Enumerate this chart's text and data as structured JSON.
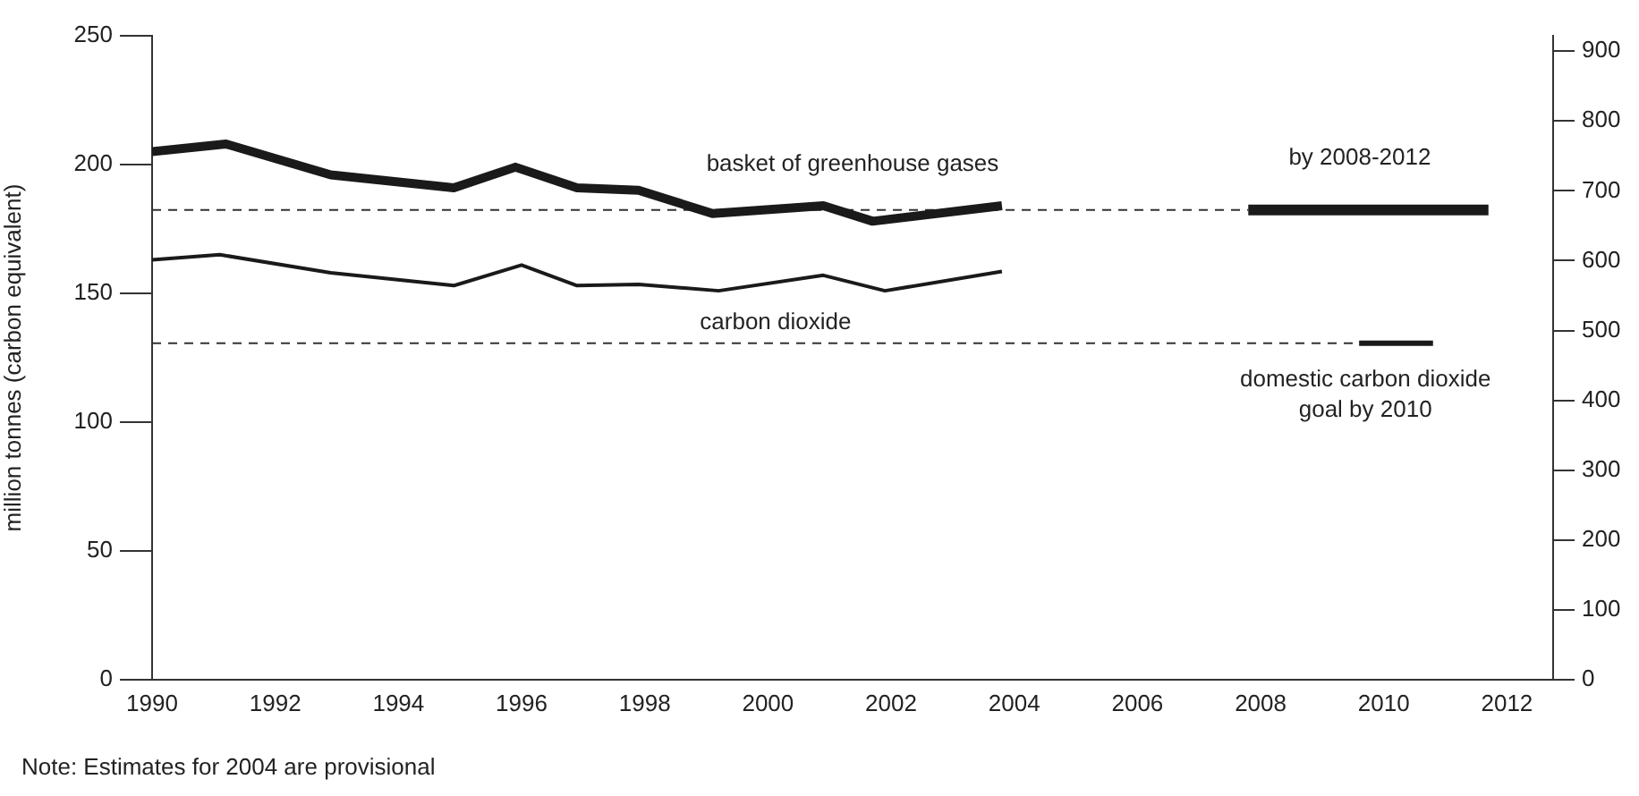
{
  "chart_data": {
    "type": "line",
    "xlim": [
      1990,
      2012.75
    ],
    "xticks": [
      1990,
      1992,
      1994,
      1996,
      1998,
      2000,
      2002,
      2004,
      2006,
      2008,
      2010,
      2012
    ],
    "ylim": [
      0,
      250
    ],
    "yticks": [
      0,
      50,
      100,
      150,
      200,
      250
    ],
    "y2lim": [
      0,
      922
    ],
    "y2ticks": [
      0,
      100,
      200,
      300,
      400,
      500,
      600,
      700,
      800,
      900
    ],
    "ylabel": "million tonnes (carbon equivalent)",
    "grid": false,
    "legend": false,
    "marker": "none",
    "series": [
      {
        "name": "basket of greenhouse gases",
        "color": "#1a1a1a",
        "x": [
          1990,
          1991.2,
          1992.9,
          1994.9,
          1995.9,
          1996.9,
          1997.9,
          1999.1,
          2000.9,
          2001.7,
          2003.8
        ],
        "values": [
          205,
          208,
          196,
          191,
          199,
          191,
          190,
          181,
          184,
          178,
          184
        ]
      },
      {
        "name": "carbon dioxide",
        "color": "#1a1a1a",
        "x": [
          1990,
          1991.1,
          1992.9,
          1994.9,
          1996.0,
          1996.9,
          1997.9,
          1999.2,
          2000.9,
          2001.9,
          2003.8
        ],
        "values": [
          163,
          165,
          158,
          153,
          161,
          153,
          153.5,
          151,
          157,
          151,
          158.5
        ]
      },
      {
        "name": "by 2008-2012",
        "color": "#1a1a1a",
        "x": [
          2007.8,
          2011.7
        ],
        "values": [
          182.4,
          182.4
        ]
      },
      {
        "name": "domestic carbon dioxide goal by 2010",
        "color": "#1a1a1a",
        "x": [
          2009.6,
          2010.8
        ],
        "values": [
          130.6,
          130.6
        ]
      },
      {
        "color": "#333333",
        "line_style": "dashed",
        "x": [
          1990,
          2007.8
        ],
        "values": [
          182.4,
          182.4
        ]
      },
      {
        "color": "#333333",
        "line_style": "dashed",
        "x": [
          1990,
          2009.6
        ],
        "values": [
          130.6,
          130.6
        ]
      }
    ],
    "annotations": [
      "Note: Estimates for 2004 are provisional"
    ]
  }
}
